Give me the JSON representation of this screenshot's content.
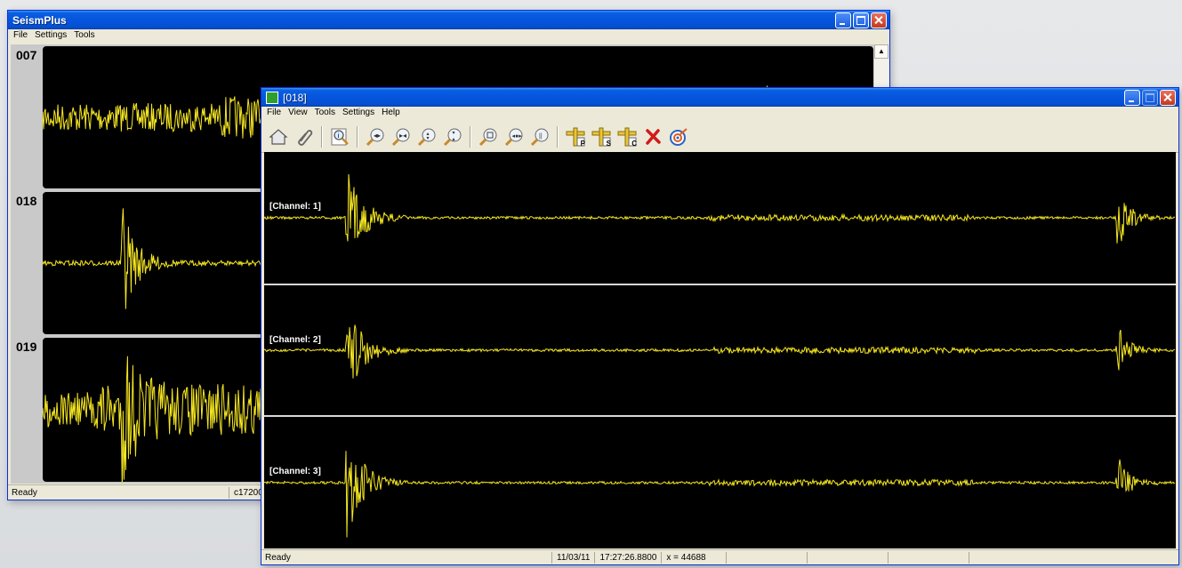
{
  "back_window": {
    "title": "SeismPlus",
    "menu": [
      "File",
      "Settings",
      "Tools"
    ],
    "traces": [
      {
        "label": "007"
      },
      {
        "label": "018"
      },
      {
        "label": "019"
      }
    ],
    "status_text": "Ready",
    "status_file": "c17200"
  },
  "front_window": {
    "title": "[018]",
    "menu": [
      "File",
      "View",
      "Tools",
      "Settings",
      "Help"
    ],
    "toolbar_icons": [
      "home-icon",
      "paperclip-icon",
      "info-magnifier-icon",
      "zoom-horizontal-in-icon",
      "zoom-horizontal-out-icon",
      "zoom-vertical-in-icon",
      "zoom-vertical-out-icon",
      "zoom-reset-icon",
      "zoom-fit-icon",
      "zoom-amplitude-icon",
      "pick-p-icon",
      "pick-s-icon",
      "pick-c-icon",
      "delete-icon",
      "target-icon"
    ],
    "pick_labels": {
      "p": "P",
      "s": "S",
      "c": "C"
    },
    "channels": [
      {
        "label": "[Channel: 1]"
      },
      {
        "label": "[Channel: 2]"
      },
      {
        "label": "[Channel: 3]"
      }
    ],
    "status": {
      "text": "Ready",
      "date": "11/03/11",
      "time": "17:27:26.8800",
      "x_readout": "x = 44688"
    }
  },
  "colors": {
    "trace": "#f5e621",
    "plot_background": "#000000",
    "titlebar": "#0655dd"
  }
}
